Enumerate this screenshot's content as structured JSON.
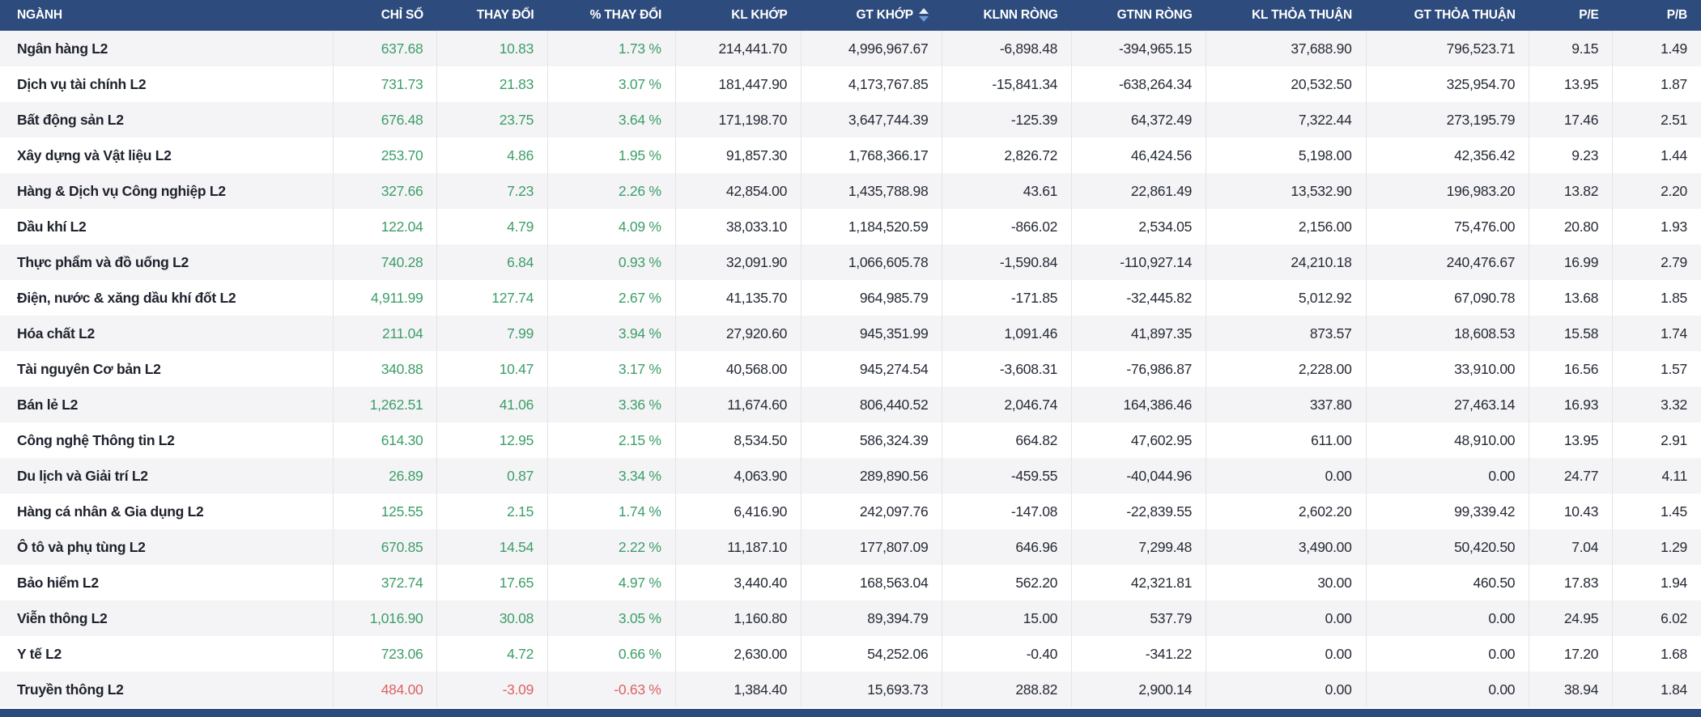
{
  "table": {
    "columns": [
      {
        "key": "nganh",
        "label": "NGÀNH",
        "align": "left",
        "width": "19.6%",
        "sorted": false
      },
      {
        "key": "chi_so",
        "label": "CHỈ SỐ",
        "align": "right",
        "width": "6.1%",
        "sorted": false
      },
      {
        "key": "thay_doi",
        "label": "THAY ĐỔI",
        "align": "right",
        "width": "6.5%",
        "sorted": false
      },
      {
        "key": "pct_thay_doi",
        "label": "% THAY ĐỔI",
        "align": "right",
        "width": "7.5%",
        "sorted": false
      },
      {
        "key": "kl_khop",
        "label": "KL KHỚP",
        "align": "right",
        "width": "7.4%",
        "sorted": false
      },
      {
        "key": "gt_khop",
        "label": "GT KHỚP",
        "align": "right",
        "width": "8.3%",
        "sorted": true
      },
      {
        "key": "klnn_rong",
        "label": "KLNN RÒNG",
        "align": "right",
        "width": "7.6%",
        "sorted": false
      },
      {
        "key": "gtnn_rong",
        "label": "GTNN RÒNG",
        "align": "right",
        "width": "7.9%",
        "sorted": false
      },
      {
        "key": "kl_thoa_thuan",
        "label": "KL THỎA THUẬN",
        "align": "right",
        "width": "9.4%",
        "sorted": false
      },
      {
        "key": "gt_thoa_thuan",
        "label": "GT THỎA THUẬN",
        "align": "right",
        "width": "9.6%",
        "sorted": false
      },
      {
        "key": "pe",
        "label": "P/E",
        "align": "right",
        "width": "4.9%",
        "sorted": false
      },
      {
        "key": "pb",
        "label": "P/B",
        "align": "right",
        "width": "5.2%",
        "sorted": false
      }
    ],
    "rows": [
      {
        "name": "Ngân hàng L2",
        "trend": "up",
        "values": [
          "637.68",
          "10.83",
          "1.73 %",
          "214,441.70",
          "4,996,967.67",
          "-6,898.48",
          "-394,965.15",
          "37,688.90",
          "796,523.71",
          "9.15",
          "1.49"
        ]
      },
      {
        "name": "Dịch vụ tài chính L2",
        "trend": "up",
        "values": [
          "731.73",
          "21.83",
          "3.07 %",
          "181,447.90",
          "4,173,767.85",
          "-15,841.34",
          "-638,264.34",
          "20,532.50",
          "325,954.70",
          "13.95",
          "1.87"
        ]
      },
      {
        "name": "Bất động sản L2",
        "trend": "up",
        "values": [
          "676.48",
          "23.75",
          "3.64 %",
          "171,198.70",
          "3,647,744.39",
          "-125.39",
          "64,372.49",
          "7,322.44",
          "273,195.79",
          "17.46",
          "2.51"
        ]
      },
      {
        "name": "Xây dựng và Vật liệu L2",
        "trend": "up",
        "values": [
          "253.70",
          "4.86",
          "1.95 %",
          "91,857.30",
          "1,768,366.17",
          "2,826.72",
          "46,424.56",
          "5,198.00",
          "42,356.42",
          "9.23",
          "1.44"
        ]
      },
      {
        "name": "Hàng & Dịch vụ Công nghiệp L2",
        "trend": "up",
        "values": [
          "327.66",
          "7.23",
          "2.26 %",
          "42,854.00",
          "1,435,788.98",
          "43.61",
          "22,861.49",
          "13,532.90",
          "196,983.20",
          "13.82",
          "2.20"
        ]
      },
      {
        "name": "Dầu khí L2",
        "trend": "up",
        "values": [
          "122.04",
          "4.79",
          "4.09 %",
          "38,033.10",
          "1,184,520.59",
          "-866.02",
          "2,534.05",
          "2,156.00",
          "75,476.00",
          "20.80",
          "1.93"
        ]
      },
      {
        "name": "Thực phẩm và đồ uống L2",
        "trend": "up",
        "values": [
          "740.28",
          "6.84",
          "0.93 %",
          "32,091.90",
          "1,066,605.78",
          "-1,590.84",
          "-110,927.14",
          "24,210.18",
          "240,476.67",
          "16.99",
          "2.79"
        ]
      },
      {
        "name": "Điện, nước & xăng dầu khí đốt L2",
        "trend": "up",
        "values": [
          "4,911.99",
          "127.74",
          "2.67 %",
          "41,135.70",
          "964,985.79",
          "-171.85",
          "-32,445.82",
          "5,012.92",
          "67,090.78",
          "13.68",
          "1.85"
        ]
      },
      {
        "name": "Hóa chất L2",
        "trend": "up",
        "values": [
          "211.04",
          "7.99",
          "3.94 %",
          "27,920.60",
          "945,351.99",
          "1,091.46",
          "41,897.35",
          "873.57",
          "18,608.53",
          "15.58",
          "1.74"
        ]
      },
      {
        "name": "Tài nguyên Cơ bản L2",
        "trend": "up",
        "values": [
          "340.88",
          "10.47",
          "3.17 %",
          "40,568.00",
          "945,274.54",
          "-3,608.31",
          "-76,986.87",
          "2,228.00",
          "33,910.00",
          "16.56",
          "1.57"
        ]
      },
      {
        "name": "Bán lẻ L2",
        "trend": "up",
        "values": [
          "1,262.51",
          "41.06",
          "3.36 %",
          "11,674.60",
          "806,440.52",
          "2,046.74",
          "164,386.46",
          "337.80",
          "27,463.14",
          "16.93",
          "3.32"
        ]
      },
      {
        "name": "Công nghệ Thông tin L2",
        "trend": "up",
        "values": [
          "614.30",
          "12.95",
          "2.15 %",
          "8,534.50",
          "586,324.39",
          "664.82",
          "47,602.95",
          "611.00",
          "48,910.00",
          "13.95",
          "2.91"
        ]
      },
      {
        "name": "Du lịch và Giải trí L2",
        "trend": "up",
        "values": [
          "26.89",
          "0.87",
          "3.34 %",
          "4,063.90",
          "289,890.56",
          "-459.55",
          "-40,044.96",
          "0.00",
          "0.00",
          "24.77",
          "4.11"
        ]
      },
      {
        "name": "Hàng cá nhân & Gia dụng L2",
        "trend": "up",
        "values": [
          "125.55",
          "2.15",
          "1.74 %",
          "6,416.90",
          "242,097.76",
          "-147.08",
          "-22,839.55",
          "2,602.20",
          "99,339.42",
          "10.43",
          "1.45"
        ]
      },
      {
        "name": "Ô tô và phụ tùng L2",
        "trend": "up",
        "values": [
          "670.85",
          "14.54",
          "2.22 %",
          "11,187.10",
          "177,807.09",
          "646.96",
          "7,299.48",
          "3,490.00",
          "50,420.50",
          "7.04",
          "1.29"
        ]
      },
      {
        "name": "Bảo hiểm L2",
        "trend": "up",
        "values": [
          "372.74",
          "17.65",
          "4.97 %",
          "3,440.40",
          "168,563.04",
          "562.20",
          "42,321.81",
          "30.00",
          "460.50",
          "17.83",
          "1.94"
        ]
      },
      {
        "name": "Viễn thông L2",
        "trend": "up",
        "values": [
          "1,016.90",
          "30.08",
          "3.05 %",
          "1,160.80",
          "89,394.79",
          "15.00",
          "537.79",
          "0.00",
          "0.00",
          "24.95",
          "6.02"
        ]
      },
      {
        "name": "Y tế L2",
        "trend": "up",
        "values": [
          "723.06",
          "4.72",
          "0.66 %",
          "2,630.00",
          "54,252.06",
          "-0.40",
          "-341.22",
          "0.00",
          "0.00",
          "17.20",
          "1.68"
        ]
      },
      {
        "name": "Truyền thông L2",
        "trend": "down",
        "values": [
          "484.00",
          "-3.09",
          "-0.63 %",
          "1,384.40",
          "15,693.73",
          "288.82",
          "2,900.14",
          "0.00",
          "0.00",
          "38.94",
          "1.84"
        ]
      }
    ],
    "trend_colored_columns": 3,
    "colors": {
      "header_bg": "#2d4b7c",
      "stripe_bg": "#f4f4f6",
      "up": "#3d9e68",
      "down": "#dd6262",
      "text": "#262b36"
    }
  }
}
